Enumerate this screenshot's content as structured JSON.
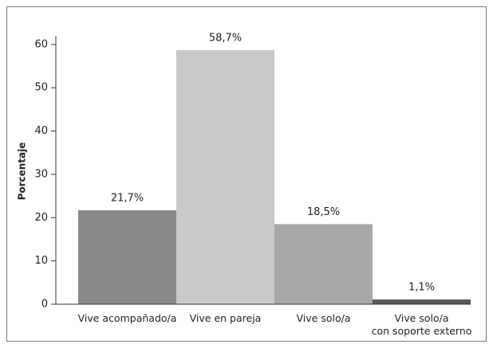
{
  "chart_data": {
    "type": "bar",
    "y_label": "Porcentaje",
    "categories": [
      "Vive acompañado/a",
      "Vive en pareja",
      "Vive solo/a",
      "Vive solo/a\ncon soporte externo"
    ],
    "values": [
      21.7,
      58.7,
      18.5,
      1.1
    ],
    "value_labels": [
      "21,7%",
      "58,7%",
      "18,5%",
      "1,1%"
    ],
    "colors": [
      "#8a8a8c",
      "#c9c9c9",
      "#a8a8aa",
      "#58585a"
    ],
    "ylim": [
      0,
      62
    ],
    "yticks": [
      0,
      10,
      20,
      30,
      40,
      50,
      60
    ],
    "grid": false
  }
}
